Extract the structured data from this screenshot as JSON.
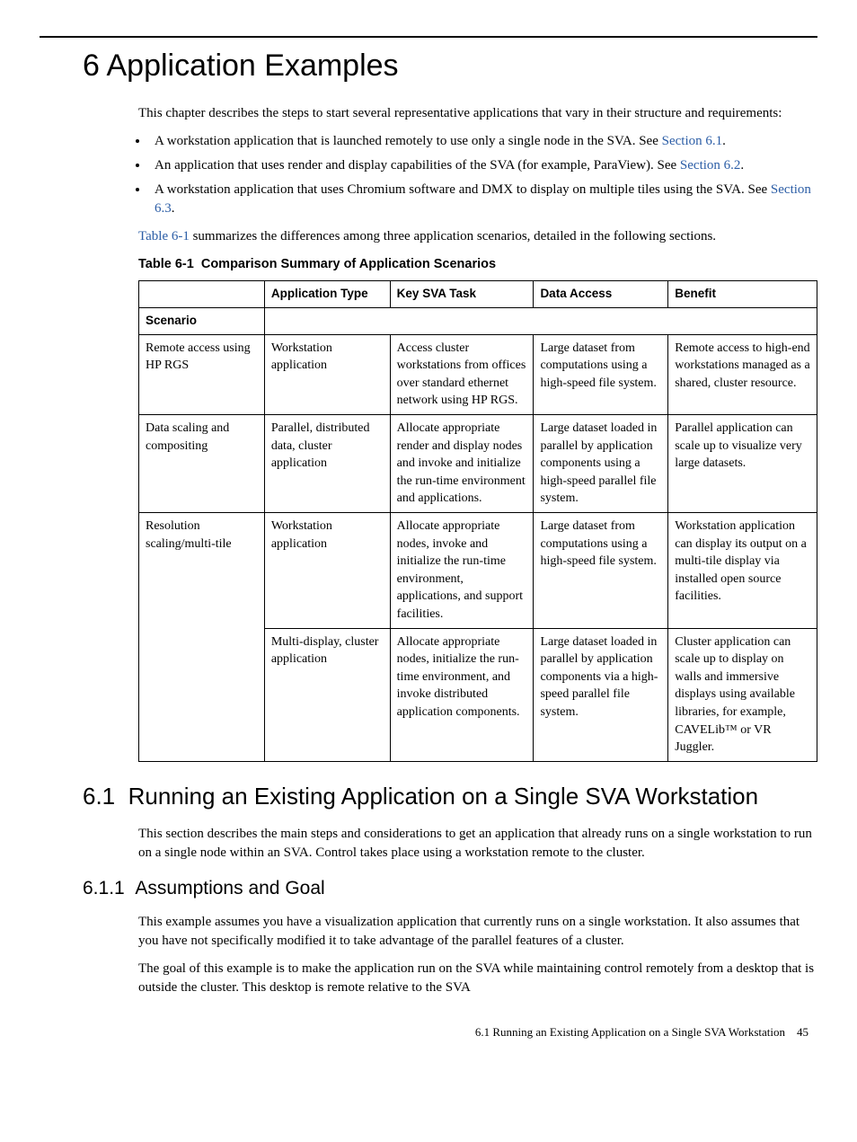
{
  "chapter": {
    "number": "6",
    "title": "Application Examples"
  },
  "intro": {
    "p1": "This chapter describes the steps to start several representative applications that vary in their structure and requirements:"
  },
  "bullets": [
    {
      "text": "A workstation application that is launched remotely to use only a single node in the SVA. See ",
      "link": "Section 6.1",
      "after": "."
    },
    {
      "text": "An application that uses render and display capabilities of the SVA (for example, ParaView). See ",
      "link": "Section 6.2",
      "after": "."
    },
    {
      "text": "A workstation application that uses Chromium software and DMX to display on multiple tiles using the SVA. See ",
      "link": "Section 6.3",
      "after": "."
    }
  ],
  "table_ref": {
    "link": "Table 6-1",
    "after": " summarizes the differences among three application scenarios, detailed in the following sections."
  },
  "table": {
    "caption_prefix": "Table  6-1",
    "caption": "Comparison Summary of Application Scenarios",
    "headers": {
      "empty": "",
      "apptype": "Application Type",
      "task": "Key SVA Task",
      "access": "Data Access",
      "benefit": "Benefit"
    },
    "scenario_label": "Scenario",
    "rows": [
      {
        "scenario": "Remote access using HP RGS",
        "apptype": "Workstation application",
        "task": "Access cluster workstations from offices over standard ethernet network using HP RGS.",
        "access": "Large dataset from computations using a high-speed file system.",
        "benefit": "Remote access to high-end workstations managed as a shared, cluster resource."
      },
      {
        "scenario": "Data scaling and compositing",
        "apptype": "Parallel, distributed data, cluster application",
        "task": "Allocate appropriate render and display nodes and invoke and initialize the run-time environment and applications.",
        "access": "Large dataset loaded in parallel by application components using a high-speed parallel file system.",
        "benefit": "Parallel application can scale up to visualize very large datasets."
      },
      {
        "scenario": "Resolution scaling/multi-tile",
        "apptype": "Workstation application",
        "task": "Allocate appropriate nodes, invoke and initialize the run-time environment, applications, and support facilities.",
        "access": "Large dataset from computations using a high-speed file system.",
        "benefit": "Workstation application can display its output on a multi-tile display via installed open source facilities.",
        "rowspan": 2
      },
      {
        "scenario": "",
        "apptype": "Multi-display, cluster application",
        "task": "Allocate appropriate nodes, initialize the run-time environment, and invoke distributed application components.",
        "access": "Large dataset loaded in parallel by application components via a high-speed parallel file system.",
        "benefit": "Cluster application can scale up to display on walls and immersive displays using available libraries, for example, CAVELib™ or VR Juggler."
      }
    ]
  },
  "section61": {
    "heading_num": "6.1",
    "heading": "Running an Existing Application on a Single SVA Workstation",
    "p1": "This section describes the main steps and considerations to get an application that already runs on a single workstation to run on a single node within an SVA. Control takes place using a workstation remote to the cluster."
  },
  "section611": {
    "heading_num": "6.1.1",
    "heading": "Assumptions and Goal",
    "p1": "This example assumes you have a visualization application that currently runs on a single workstation. It also assumes that you have not specifically modified it to take advantage of the parallel features of a cluster.",
    "p2": "The goal of this example is to make the application run on the SVA while maintaining control remotely from a desktop that is outside the cluster. This desktop is remote relative to the SVA"
  },
  "footer": {
    "text": "6.1 Running an Existing Application on a Single SVA Workstation",
    "page": "45"
  },
  "colors": {
    "link": "#2b5da6"
  }
}
